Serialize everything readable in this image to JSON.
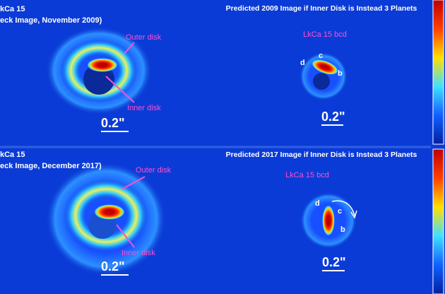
{
  "panels": [
    {
      "title": "kCa 15",
      "subtitle": "eck Image, November 2009)",
      "labels": [
        "Outer disk",
        "Inner disk"
      ],
      "scale": "0.2\""
    },
    {
      "title": "Predicted 2009 Image if Inner Disk is Instead 3 Planets",
      "subtitle": "LkCa 15 bcd",
      "labels": [
        "d",
        "c",
        "b"
      ],
      "scale": "0.2\""
    },
    {
      "title": "kCa 15",
      "subtitle": "eck Image, December 2017)",
      "labels": [
        "Outer disk",
        "Inner disk"
      ],
      "scale": "0.2\""
    },
    {
      "title": "Predicted 2017 Image if Inner Disk is Instead 3 Planets",
      "subtitle": "LkCa 15 bcd",
      "labels": [
        "d",
        "c",
        "b"
      ],
      "scale": "0.2\""
    }
  ]
}
